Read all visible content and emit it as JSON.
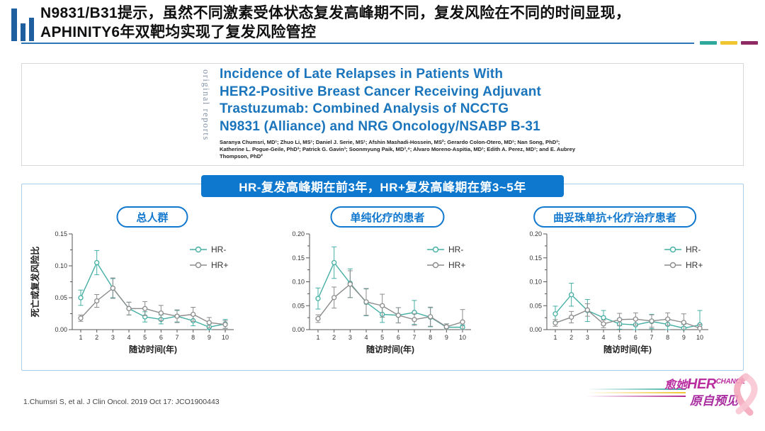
{
  "header": {
    "title_line1": "N9831/B31提示，虽然不同激素受体状态复发高峰期不同，复发风险在不同的时间显现，",
    "title_line2": "APHINITY6年双靶均实现了复发风险管控"
  },
  "paper": {
    "side_label": "original reports",
    "title_lines": [
      "Incidence of Late Relapses in Patients With",
      "HER2-Positive Breast Cancer Receiving Adjuvant",
      "Trastuzumab: Combined Analysis of NCCTG",
      "N9831 (Alliance) and NRG Oncology/NSABP B-31"
    ],
    "authors": "Saranya Chumsri, MD¹; Zhuo Li, MS¹; Daniel J. Serie, MS¹; Afshin Mashadi-Hossein, MS²; Gerardo Colon-Otero, MD¹; Nan Song, PhD³; Katherine L. Pogue-Geile, PhD³; Patrick G. Gavin³; Soonmyung Paik, MD³,⁴; Alvaro Moreno-Aspitia, MD¹; Edith A. Perez, MD¹; and E. Aubrey Thompson, PhD²"
  },
  "banner": {
    "text": "HR-复发高峰期在前3年，HR+复发高峰期在第3~5年"
  },
  "footer": {
    "citation": "1.Chumsri S, et al. J Clin Oncol. 2019 Oct 17: JCO1900443"
  },
  "logo": {
    "zh1": "愈她",
    "en1": "HER",
    "en2": "CHANCE",
    "zh2": "原自预见"
  },
  "colors": {
    "banner_blue": "#0E78CE",
    "pill_blue": "#1178CE",
    "paper_blue": "#1B75BC",
    "accent_teal": "#2FA89C",
    "accent_yellow": "#EFC62F",
    "accent_purple": "#8E2A64",
    "series_teal": "#45AFA4",
    "series_gray": "#8C8C8C"
  },
  "chart_data": [
    {
      "type": "line",
      "title": "总人群",
      "x": [
        1,
        2,
        3,
        4,
        5,
        6,
        7,
        8,
        9,
        10
      ],
      "xlabel": "随访时间(年)",
      "ylabel": "死亡或复发风险比",
      "ylim": [
        0,
        0.15
      ],
      "ytick_step": 0.05,
      "grid": false,
      "legend_position": "top-right",
      "series": [
        {
          "name": "HR-",
          "color": "#45AFA4",
          "values": [
            0.05,
            0.105,
            0.065,
            0.033,
            0.02,
            0.016,
            0.021,
            0.014,
            0.004,
            0.009
          ],
          "err": [
            0.012,
            0.019,
            0.015,
            0.01,
            0.008,
            0.007,
            0.009,
            0.008,
            0.005,
            0.007
          ]
        },
        {
          "name": "HR+",
          "color": "#8C8C8C",
          "values": [
            0.018,
            0.045,
            0.065,
            0.033,
            0.033,
            0.026,
            0.021,
            0.024,
            0.011,
            0.008
          ],
          "err": [
            0.005,
            0.01,
            0.016,
            0.01,
            0.011,
            0.012,
            0.01,
            0.011,
            0.008,
            0.006
          ]
        }
      ]
    },
    {
      "type": "line",
      "title": "单纯化疗的患者",
      "x": [
        1,
        2,
        3,
        4,
        5,
        6,
        7,
        8,
        9,
        10
      ],
      "xlabel": "随访时间(年)",
      "ylabel": "",
      "ylim": [
        0,
        0.2
      ],
      "ytick_step": 0.05,
      "grid": false,
      "legend_position": "top-right",
      "series": [
        {
          "name": "HR-",
          "color": "#45AFA4",
          "values": [
            0.065,
            0.14,
            0.097,
            0.057,
            0.032,
            0.03,
            0.036,
            0.026,
            0.005,
            0.005
          ],
          "err": [
            0.022,
            0.033,
            0.03,
            0.028,
            0.017,
            0.016,
            0.025,
            0.02,
            0.007,
            0.005
          ]
        },
        {
          "name": "HR+",
          "color": "#8C8C8C",
          "values": [
            0.023,
            0.067,
            0.095,
            0.058,
            0.05,
            0.03,
            0.021,
            0.027,
            0.006,
            0.016
          ],
          "err": [
            0.008,
            0.022,
            0.028,
            0.028,
            0.024,
            0.016,
            0.012,
            0.02,
            0.006,
            0.026
          ]
        }
      ]
    },
    {
      "type": "line",
      "title": "曲妥珠单抗+化疗治疗患者",
      "x": [
        1,
        2,
        3,
        4,
        5,
        6,
        7,
        8,
        9,
        10
      ],
      "xlabel": "随访时间(年)",
      "ylabel": "",
      "ylim": [
        0,
        0.2
      ],
      "ytick_step": 0.05,
      "grid": false,
      "legend_position": "top-right",
      "series": [
        {
          "name": "HR-",
          "color": "#45AFA4",
          "values": [
            0.033,
            0.073,
            0.04,
            0.025,
            0.012,
            0.01,
            0.017,
            0.011,
            0.003,
            0.01
          ],
          "err": [
            0.016,
            0.024,
            0.023,
            0.015,
            0.011,
            0.012,
            0.015,
            0.012,
            0.008,
            0.03
          ]
        },
        {
          "name": "HR+",
          "color": "#8C8C8C",
          "values": [
            0.014,
            0.026,
            0.041,
            0.012,
            0.021,
            0.022,
            0.018,
            0.022,
            0.015,
            0.003
          ],
          "err": [
            0.007,
            0.012,
            0.013,
            0.008,
            0.013,
            0.013,
            0.013,
            0.013,
            0.018,
            0.008
          ]
        }
      ]
    }
  ]
}
